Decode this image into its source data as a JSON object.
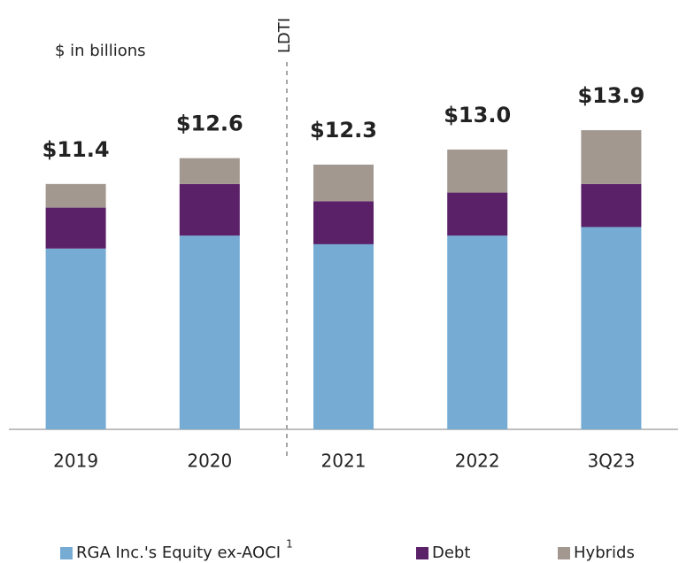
{
  "chart_data": {
    "type": "stacked_bar",
    "note": "$ in billions",
    "annotation": "LDTI",
    "categories": [
      "2019",
      "2020",
      "2021",
      "2022",
      "3Q23"
    ],
    "series": [
      {
        "name": "RGA Inc.'s Equity ex-AOCI",
        "footnote": "1",
        "color": "#76acd4",
        "values": [
          8.4,
          9.0,
          8.6,
          9.0,
          9.4
        ]
      },
      {
        "name": "Debt",
        "color": "#5a2169",
        "values": [
          1.9,
          2.4,
          2.0,
          2.0,
          2.0
        ]
      },
      {
        "name": "Hybrids",
        "color": "#a39890",
        "values": [
          1.1,
          1.2,
          1.7,
          2.0,
          2.5
        ]
      }
    ],
    "totals": [
      11.4,
      12.6,
      12.3,
      13.0,
      13.9
    ],
    "total_labels": [
      "$11.4",
      "$12.6",
      "$12.3",
      "$13.0",
      "$13.9"
    ],
    "ylim": [
      0,
      16
    ]
  }
}
